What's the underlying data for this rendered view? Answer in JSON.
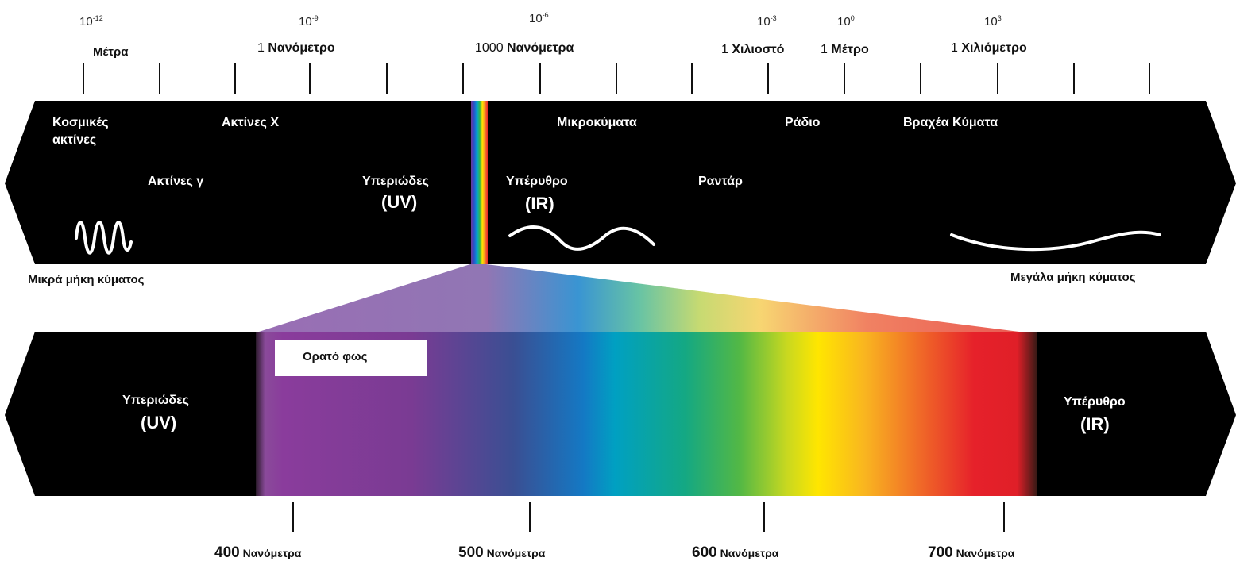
{
  "scale": {
    "powers": [
      {
        "base": "10",
        "exp": "-12"
      },
      {
        "base": "10",
        "exp": "-9"
      },
      {
        "base": "10",
        "exp": "-6"
      },
      {
        "base": "10",
        "exp": "-3"
      },
      {
        "base": "10",
        "exp": "0"
      },
      {
        "base": "10",
        "exp": "3"
      }
    ],
    "labels": {
      "meters": "Μέτρα",
      "nanometer_num": "1",
      "nanometer": "Νανόμετρο",
      "thousand_nm_num": "1000",
      "thousand_nm": "Νανόμετρα",
      "millimeter_num": "1",
      "millimeter": "Χιλιοστό",
      "meter_num": "1",
      "meter": "Μέτρο",
      "kilometer_num": "1",
      "kilometer": "Χιλιόμετρο"
    }
  },
  "spectrum": {
    "cosmic_line1": "Κοσμικές",
    "cosmic_line2": "ακτίνες",
    "xrays": "Ακτίνες X",
    "gamma": "Ακτίνες γ",
    "uv_word": "Υπεριώδες",
    "uv_abbr": "(UV)",
    "ir_word": "Υπέρυθρο",
    "ir_abbr": "(IR)",
    "microwaves": "Μικροκύματα",
    "radar": "Ραντάρ",
    "radio": "Ράδιο",
    "shortwave": "Βραχέα Κύματα"
  },
  "edges": {
    "short": "Μικρά μήκη κύματος",
    "long": "Μεγάλα μήκη κύματος"
  },
  "visible": {
    "title": "Ορατό φως",
    "uv_word": "Υπεριώδες",
    "uv_abbr": "(UV)",
    "ir_word": "Υπέρυθρο",
    "ir_abbr": "(IR)",
    "ticks": [
      {
        "num": "400",
        "unit": "Νανόμετρα"
      },
      {
        "num": "500",
        "unit": "Νανόμετρα"
      },
      {
        "num": "600",
        "unit": "Νανόμετρα"
      },
      {
        "num": "700",
        "unit": "Νανόμετρα"
      }
    ]
  },
  "colors": {
    "band": "#000000",
    "violet": "#7b3a98",
    "blue": "#3b5fa8",
    "cyan": "#00a6c4",
    "green": "#2fae4b",
    "yellow": "#ffe400",
    "orange": "#f4862a",
    "red": "#e8202a"
  }
}
